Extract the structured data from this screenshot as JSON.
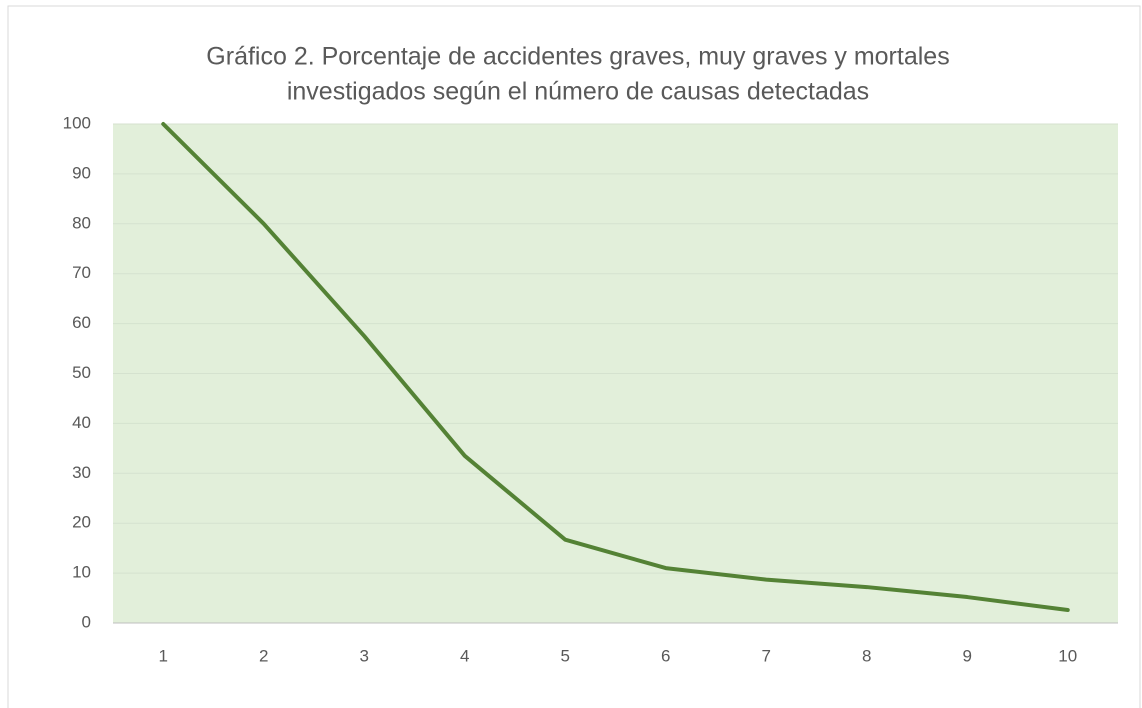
{
  "chart_data": {
    "type": "line",
    "title": [
      "Gráfico 2. Porcentaje de accidentes  graves, muy graves y mortales",
      "investigados según el número de causas detectadas"
    ],
    "categories": [
      "1",
      "2",
      "3",
      "4",
      "5",
      "6",
      "7",
      "8",
      "9",
      "10"
    ],
    "values": [
      100,
      80,
      57.5,
      33.5,
      16.7,
      11,
      8.7,
      7.2,
      5.2,
      2.6
    ],
    "color": "#548235",
    "plot_background": "#e2efda",
    "ylim": [
      0,
      100
    ],
    "yticks": [
      0,
      10,
      20,
      30,
      40,
      50,
      60,
      70,
      80,
      90,
      100
    ],
    "grid": true
  }
}
